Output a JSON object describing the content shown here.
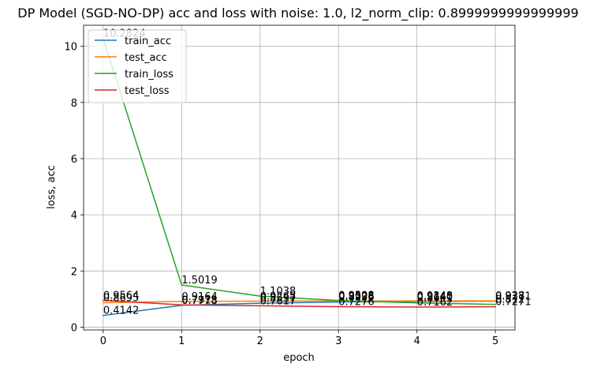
{
  "chart_data": {
    "type": "line",
    "title": "DP Model (SGD-NO-DP) acc and loss with noise: 1.0, l2_norm_clip: 0.8999999999999999",
    "xlabel": "epoch",
    "ylabel": "loss, acc",
    "x": [
      0,
      1,
      2,
      3,
      4,
      5
    ],
    "xlim": [
      -0.25,
      5.25
    ],
    "ylim": [
      -0.1,
      10.75
    ],
    "x_ticks": [
      "0",
      "1",
      "2",
      "3",
      "4",
      "5"
    ],
    "y_ticks": [
      "0",
      "2",
      "4",
      "6",
      "8",
      "10"
    ],
    "grid": true,
    "legend_position": "top-left",
    "series": [
      {
        "name": "train_acc",
        "color": "#1f77b4",
        "values": [
          0.4142,
          0.7778,
          0.8537,
          0.8936,
          0.914,
          0.9271
        ],
        "labels": [
          "0.4142",
          "0.7778",
          "0.8537",
          "0.8936",
          "0.9140",
          "0.9271"
        ]
      },
      {
        "name": "test_acc",
        "color": "#ff7f0e",
        "values": [
          0.8695,
          0.9164,
          0.9265,
          0.9328,
          0.9348,
          0.938
        ],
        "labels": [
          "0.8695",
          "0.9164",
          "0.9265",
          "0.9328",
          "0.9348",
          "0.938"
        ]
      },
      {
        "name": "train_loss",
        "color": "#2ca02c",
        "values": [
          10.2824,
          1.5019,
          1.1038,
          0.9508,
          0.8641,
          0.812
        ],
        "labels": [
          "10.2824",
          "1.5019",
          "1.1038",
          "0.9508",
          "0.8641",
          "0.812"
        ]
      },
      {
        "name": "test_loss",
        "color": "#d62728",
        "values": [
          0.9564,
          0.7915,
          0.7617,
          0.7276,
          0.7162,
          0.7271
        ],
        "labels": [
          "0.9564",
          "0.7915",
          "0.7617",
          "0.7276",
          "0.7162",
          "0.7271"
        ]
      }
    ]
  }
}
